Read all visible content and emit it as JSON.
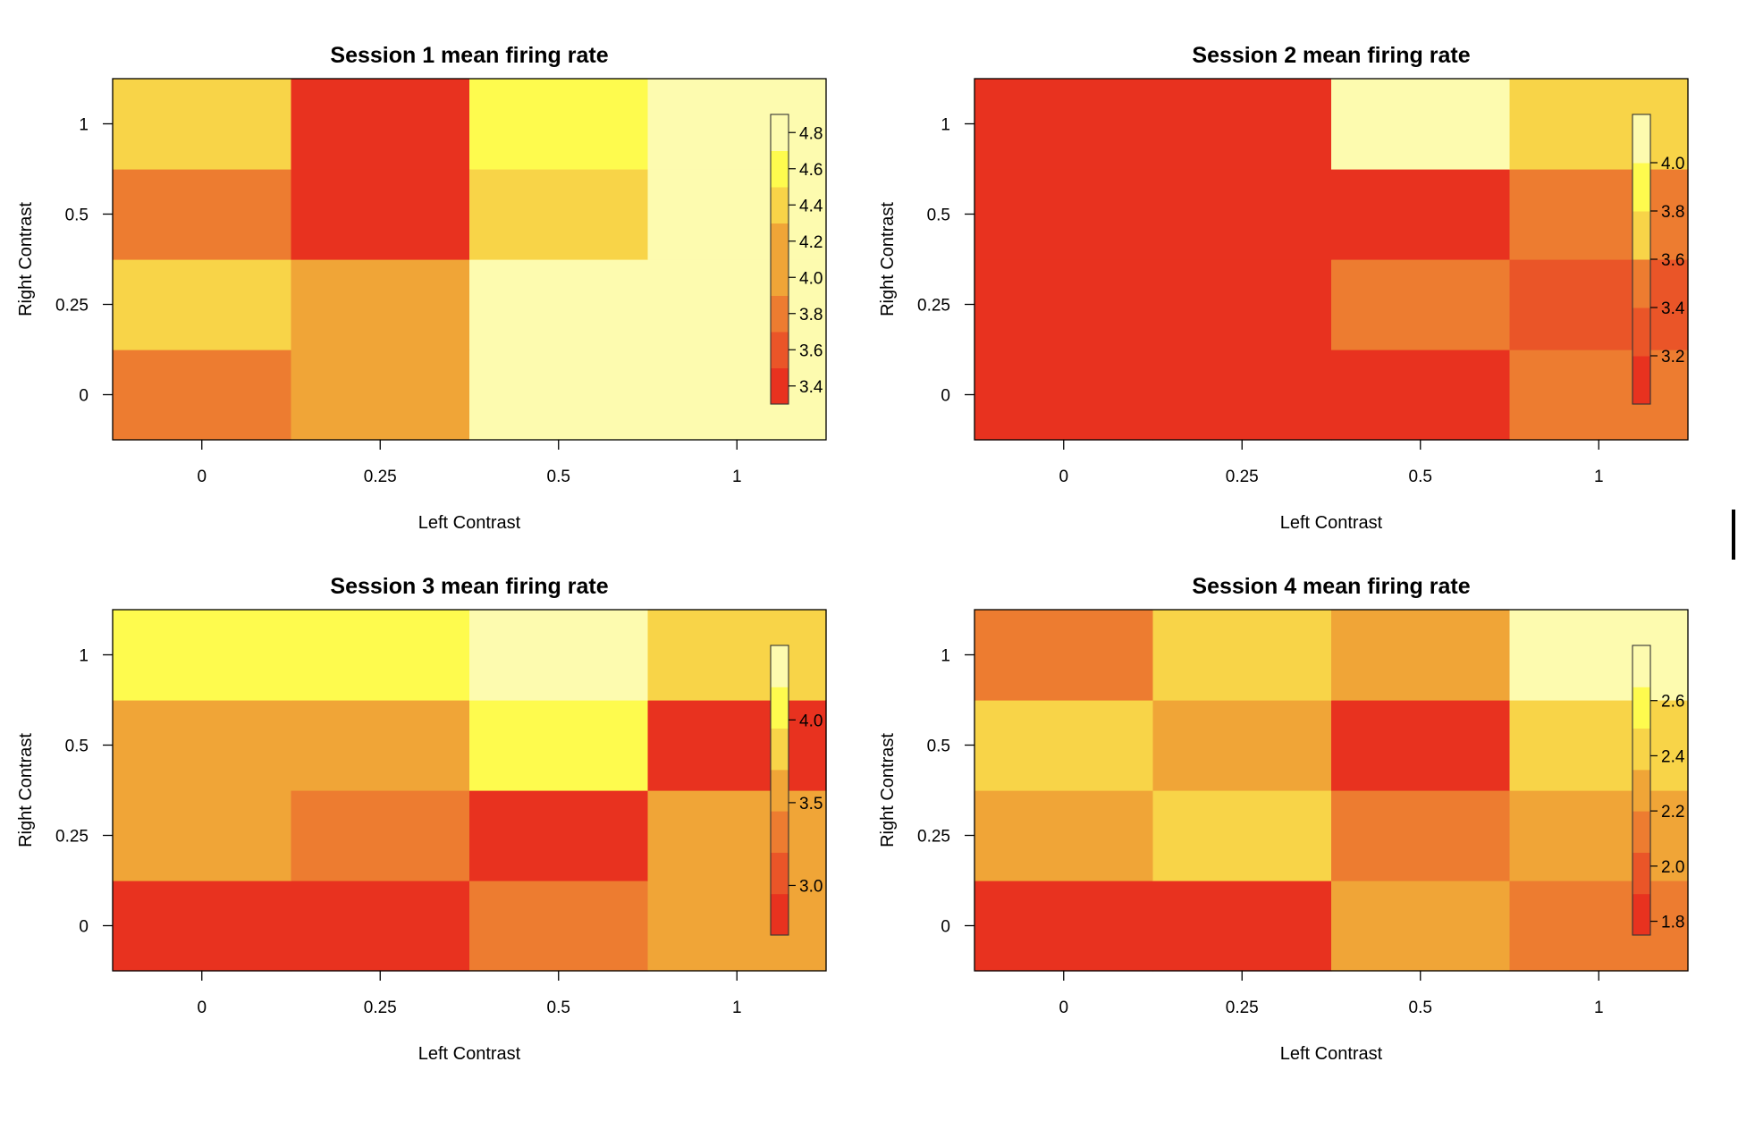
{
  "chart_data": [
    {
      "type": "heatmap",
      "title": "Session 1 mean firing rate",
      "xlabel": "Left Contrast",
      "ylabel": "Right Contrast",
      "x_categories": [
        "0",
        "0.25",
        "0.5",
        "1"
      ],
      "y_categories": [
        "0",
        "0.25",
        "0.5",
        "1"
      ],
      "values": [
        [
          3.95,
          4.05,
          4.68,
          4.68
        ],
        [
          4.32,
          4.05,
          4.9,
          4.9
        ],
        [
          3.88,
          3.5,
          4.33,
          4.9
        ],
        [
          4.33,
          3.5,
          4.65,
          4.9
        ]
      ],
      "legend": {
        "ticks": [
          "3.4",
          "3.6",
          "3.8",
          "4.0",
          "4.2",
          "4.4",
          "4.6",
          "4.8"
        ],
        "range": [
          3.3,
          4.9
        ],
        "levels": 8,
        "placement": "right-inside"
      }
    },
    {
      "type": "heatmap",
      "title": "Session 2 mean firing rate",
      "xlabel": "Left Contrast",
      "ylabel": "Right Contrast",
      "x_categories": [
        "0",
        "0.25",
        "0.5",
        "1"
      ],
      "y_categories": [
        "0",
        "0.25",
        "0.5",
        "1"
      ],
      "values": [
        [
          3.1,
          3.1,
          3.1,
          3.5
        ],
        [
          3.1,
          3.1,
          3.5,
          3.2
        ],
        [
          3.1,
          3.1,
          3.1,
          3.45
        ],
        [
          3.1,
          3.1,
          4.1,
          3.8
        ]
      ],
      "legend": {
        "ticks": [
          "3.2",
          "3.4",
          "3.6",
          "3.8",
          "4.0"
        ],
        "range": [
          3.0,
          4.2
        ],
        "levels": 6,
        "placement": "right-inside"
      }
    },
    {
      "type": "heatmap",
      "title": "Session 3 mean firing rate",
      "xlabel": "Left Contrast",
      "ylabel": "Right Contrast",
      "x_categories": [
        "0",
        "0.25",
        "0.5",
        "1"
      ],
      "y_categories": [
        "0",
        "0.25",
        "0.5",
        "1"
      ],
      "values": [
        [
          2.85,
          2.85,
          3.3,
          3.55
        ],
        [
          3.55,
          3.3,
          2.85,
          3.55
        ],
        [
          3.55,
          3.55,
          4.05,
          2.85
        ],
        [
          4.05,
          4.05,
          4.35,
          3.8
        ]
      ],
      "legend": {
        "ticks": [
          "3.0",
          "3.5",
          "4.0"
        ],
        "range": [
          2.7,
          4.45
        ],
        "levels": 7,
        "placement": "right-inside"
      }
    },
    {
      "type": "heatmap",
      "title": "Session 4 mean firing rate",
      "xlabel": "Left Contrast",
      "ylabel": "Right Contrast",
      "x_categories": [
        "0",
        "0.25",
        "0.5",
        "1"
      ],
      "y_categories": [
        "0",
        "0.25",
        "0.5",
        "1"
      ],
      "values": [
        [
          1.85,
          1.85,
          2.25,
          2.1
        ],
        [
          2.25,
          2.35,
          2.1,
          2.25
        ],
        [
          2.45,
          2.25,
          1.85,
          2.45
        ],
        [
          2.1,
          2.45,
          2.25,
          2.75
        ]
      ],
      "legend": {
        "ticks": [
          "1.8",
          "2.0",
          "2.2",
          "2.4",
          "2.6"
        ],
        "range": [
          1.75,
          2.8
        ],
        "levels": 7,
        "placement": "right-inside"
      }
    }
  ],
  "palette": [
    "#E8321F",
    "#EA5528",
    "#ED7C30",
    "#F0A537",
    "#F8D448",
    "#FEFB4E",
    "#FDFBAF"
  ]
}
